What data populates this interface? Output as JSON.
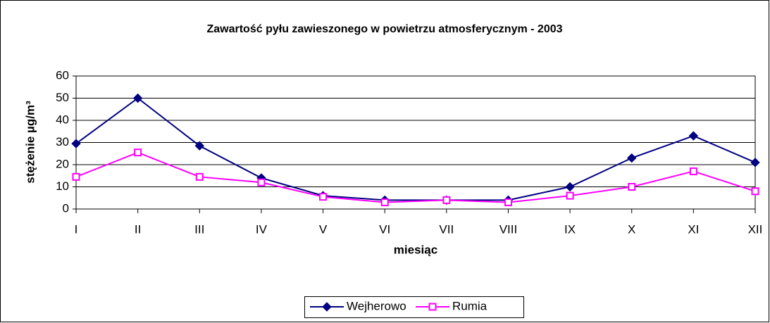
{
  "chart_data": {
    "type": "line",
    "title": "Zawartość pyłu zawieszonego w powietrzu atmosferycznym - 2003",
    "xlabel": "miesiąc",
    "ylabel": "stężenie µg/m³",
    "categories": [
      "I",
      "II",
      "III",
      "IV",
      "V",
      "VI",
      "VII",
      "VIII",
      "IX",
      "X",
      "XI",
      "XII"
    ],
    "series": [
      {
        "name": "Wejherowo",
        "color": "#000080",
        "marker": "diamond",
        "values": [
          29.5,
          50,
          28.5,
          14,
          6,
          4,
          4,
          4,
          10,
          23,
          33,
          21
        ]
      },
      {
        "name": "Rumia",
        "color": "#ff00ff",
        "marker": "square",
        "values": [
          14.5,
          25.5,
          14.5,
          12,
          5.5,
          3,
          4,
          3,
          6,
          10,
          17,
          8
        ]
      }
    ],
    "ylim": [
      0,
      60
    ],
    "yticks": [
      0,
      10,
      20,
      30,
      40,
      50,
      60
    ],
    "grid": true,
    "legend": "bottom"
  }
}
